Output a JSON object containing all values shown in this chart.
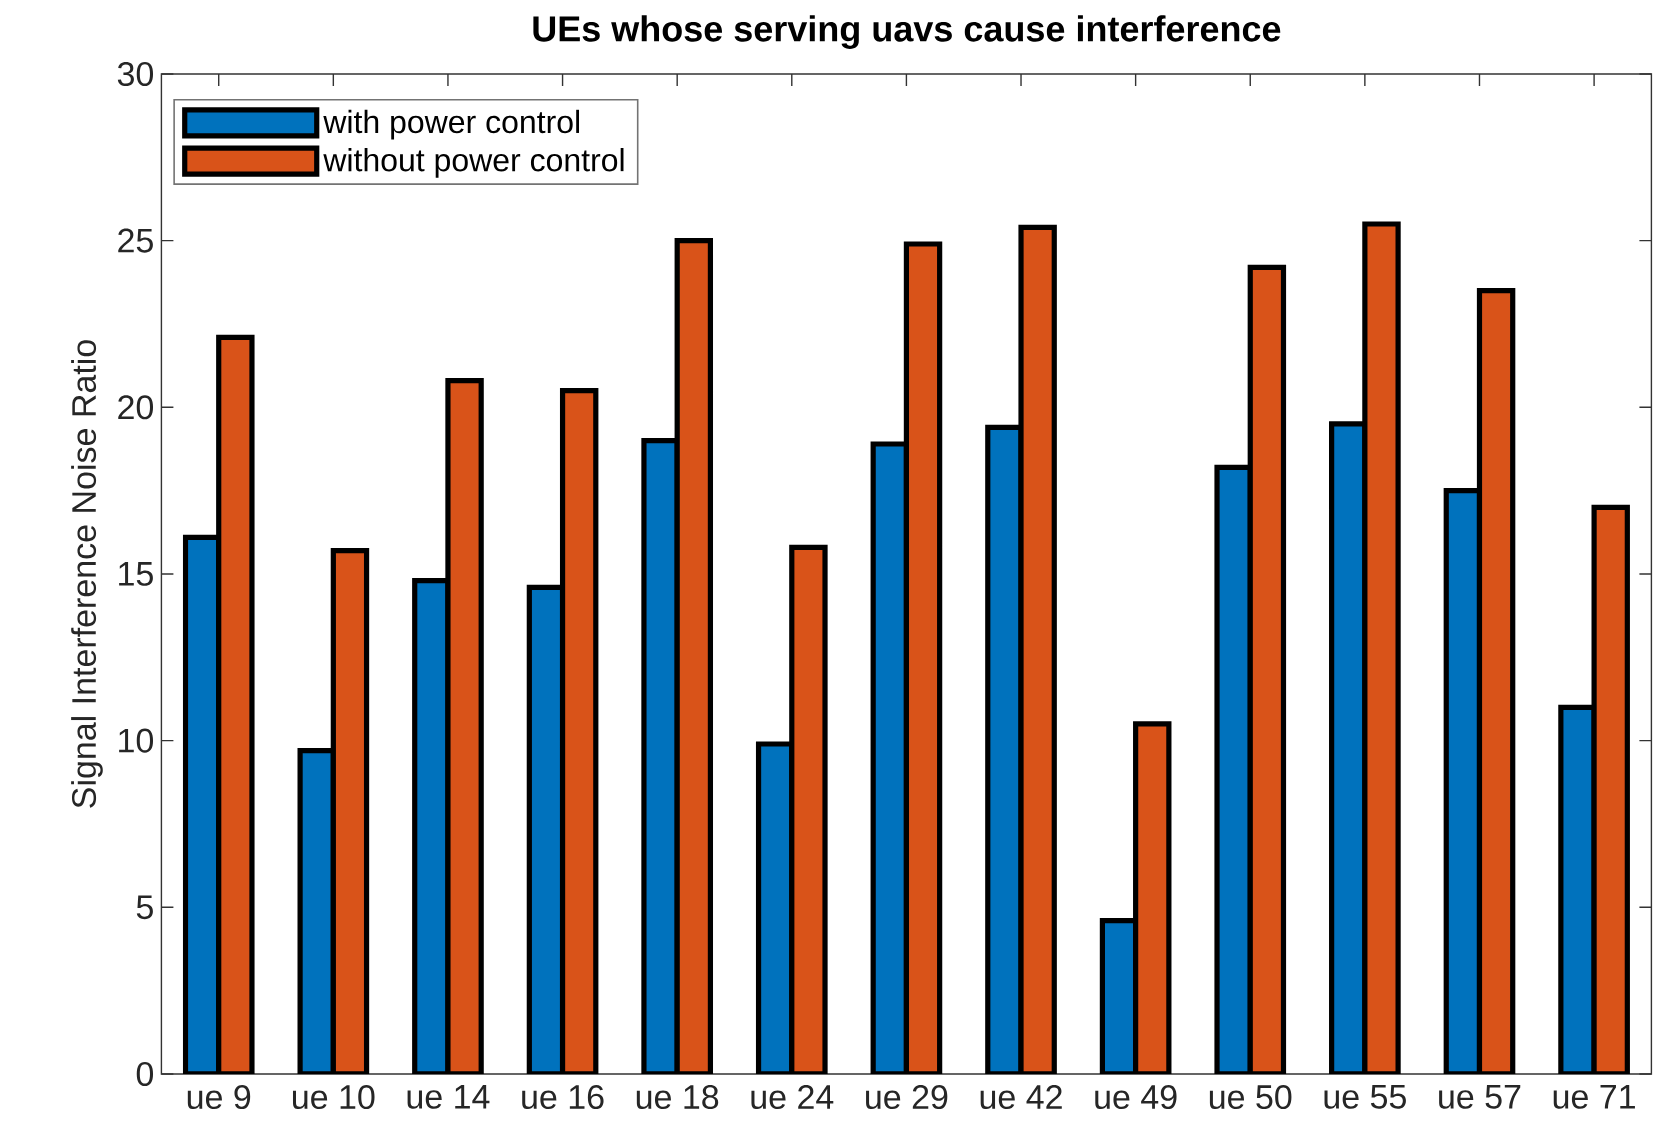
{
  "chart_data": {
    "type": "bar",
    "title": "UEs whose serving uavs cause interference",
    "ylabel": "Signal Interference Noise Ratio",
    "categories": [
      "ue 9",
      "ue 10",
      "ue 14",
      "ue 16",
      "ue 18",
      "ue 24",
      "ue 29",
      "ue 42",
      "ue 49",
      "ue 50",
      "ue 55",
      "ue 57",
      "ue 71"
    ],
    "series": [
      {
        "name": "with power control",
        "color": "#0072bd",
        "values": [
          16.1,
          9.7,
          14.8,
          14.6,
          19.0,
          9.9,
          18.9,
          19.4,
          4.6,
          18.2,
          19.5,
          17.5,
          11.0
        ]
      },
      {
        "name": "without power control",
        "color": "#d95319",
        "values": [
          22.1,
          15.7,
          20.8,
          20.5,
          25.0,
          15.8,
          24.9,
          25.4,
          10.5,
          24.2,
          25.5,
          23.5,
          17.0
        ]
      }
    ],
    "ylim": [
      0,
      30
    ],
    "yticks": [
      0,
      5,
      10,
      15,
      20,
      25,
      30
    ],
    "legend": "top left"
  }
}
